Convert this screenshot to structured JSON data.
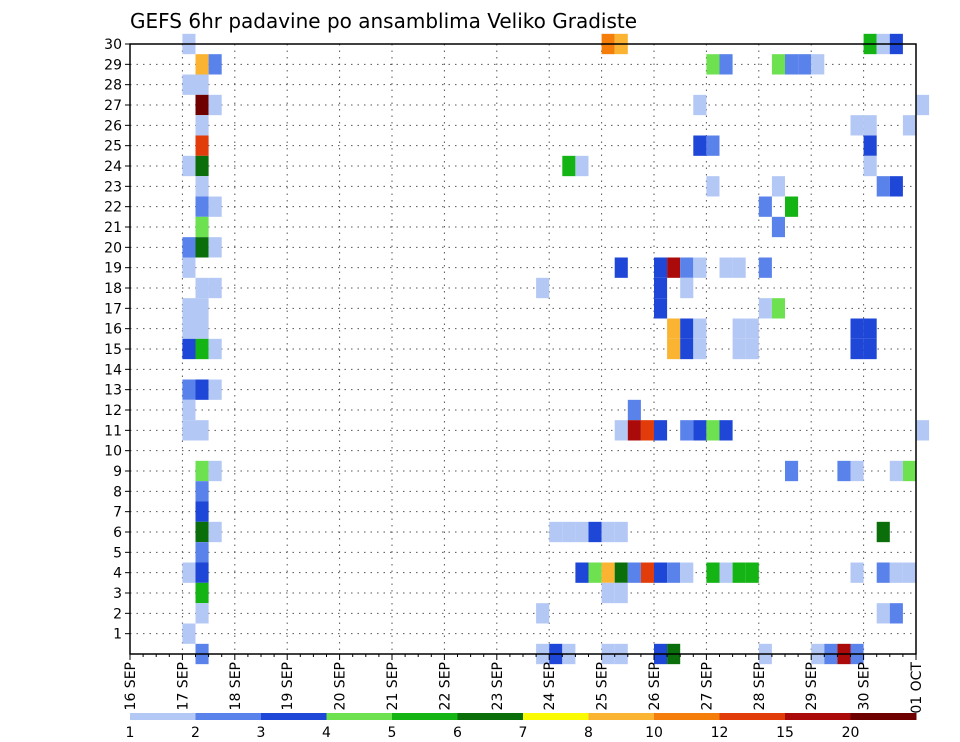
{
  "chart_data": {
    "type": "heatmap",
    "title": "GEFS 6hr padavine po ansamblima Veliko Gradiste",
    "xlabel": "",
    "ylabel": "",
    "x_ticks": [
      "16 SEP",
      "17 SEP",
      "18 SEP",
      "19 SEP",
      "20 SEP",
      "21 SEP",
      "22 SEP",
      "23 SEP",
      "24 SEP",
      "25 SEP",
      "26 SEP",
      "27 SEP",
      "28 SEP",
      "29 SEP",
      "30 SEP",
      "01 OCT"
    ],
    "x_range": [
      "16 SEP 00h",
      "01 OCT 00h"
    ],
    "y_ticks": [
      1,
      2,
      3,
      4,
      5,
      6,
      7,
      8,
      9,
      10,
      11,
      12,
      13,
      14,
      15,
      16,
      17,
      18,
      19,
      20,
      21,
      22,
      23,
      24,
      25,
      26,
      27,
      28,
      29,
      30
    ],
    "y_range": [
      0,
      30
    ],
    "grid": true,
    "legend": {
      "placement": "bottom",
      "levels": [
        1,
        2,
        3,
        4,
        5,
        6,
        7,
        8,
        10,
        12,
        15,
        20
      ],
      "colors": [
        "#b4c8f5",
        "#5a82eb",
        "#1e46d7",
        "#6ee150",
        "#14b414",
        "#0a6e0a",
        "#fafa00",
        "#fab432",
        "#f57d0a",
        "#e13c0a",
        "#aa0a0a",
        "#6e0000"
      ]
    },
    "cells": [
      {
        "member": 30,
        "time": "17 SEP 00h",
        "level": 1
      },
      {
        "member": 30,
        "time": "25 SEP 00h",
        "level": 10
      },
      {
        "member": 30,
        "time": "25 SEP 06h",
        "level": 8
      },
      {
        "member": 30,
        "time": "30 SEP 00h",
        "level": 5
      },
      {
        "member": 30,
        "time": "30 SEP 06h",
        "level": 1
      },
      {
        "member": 30,
        "time": "30 SEP 12h",
        "level": 3
      },
      {
        "member": 29,
        "time": "17 SEP 06h",
        "level": 8
      },
      {
        "member": 29,
        "time": "17 SEP 12h",
        "level": 2
      },
      {
        "member": 29,
        "time": "27 SEP 00h",
        "level": 4
      },
      {
        "member": 29,
        "time": "27 SEP 06h",
        "level": 2
      },
      {
        "member": 29,
        "time": "28 SEP 06h",
        "level": 4
      },
      {
        "member": 29,
        "time": "28 SEP 12h",
        "level": 2
      },
      {
        "member": 29,
        "time": "28 SEP 18h",
        "level": 2
      },
      {
        "member": 29,
        "time": "29 SEP 00h",
        "level": 1
      },
      {
        "member": 28,
        "time": "17 SEP 00h",
        "level": 1
      },
      {
        "member": 28,
        "time": "17 SEP 06h",
        "level": 1
      },
      {
        "member": 27,
        "time": "17 SEP 06h",
        "level": 20
      },
      {
        "member": 27,
        "time": "17 SEP 12h",
        "level": 1
      },
      {
        "member": 27,
        "time": "26 SEP 18h",
        "level": 1
      },
      {
        "member": 27,
        "time": "01 OCT 00h",
        "level": 1
      },
      {
        "member": 26,
        "time": "17 SEP 06h",
        "level": 1
      },
      {
        "member": 26,
        "time": "29 SEP 18h",
        "level": 1
      },
      {
        "member": 26,
        "time": "30 SEP 00h",
        "level": 1
      },
      {
        "member": 26,
        "time": "30 SEP 18h",
        "level": 1
      },
      {
        "member": 25,
        "time": "17 SEP 06h",
        "level": 12
      },
      {
        "member": 25,
        "time": "26 SEP 18h",
        "level": 3
      },
      {
        "member": 25,
        "time": "27 SEP 00h",
        "level": 2
      },
      {
        "member": 25,
        "time": "30 SEP 00h",
        "level": 3
      },
      {
        "member": 24,
        "time": "17 SEP 00h",
        "level": 1
      },
      {
        "member": 24,
        "time": "17 SEP 06h",
        "level": 6
      },
      {
        "member": 24,
        "time": "24 SEP 06h",
        "level": 5
      },
      {
        "member": 24,
        "time": "24 SEP 12h",
        "level": 1
      },
      {
        "member": 24,
        "time": "30 SEP 00h",
        "level": 1
      },
      {
        "member": 23,
        "time": "17 SEP 06h",
        "level": 1
      },
      {
        "member": 23,
        "time": "27 SEP 00h",
        "level": 1
      },
      {
        "member": 23,
        "time": "28 SEP 06h",
        "level": 1
      },
      {
        "member": 23,
        "time": "30 SEP 06h",
        "level": 2
      },
      {
        "member": 23,
        "time": "30 SEP 12h",
        "level": 3
      },
      {
        "member": 22,
        "time": "17 SEP 06h",
        "level": 2
      },
      {
        "member": 22,
        "time": "17 SEP 12h",
        "level": 1
      },
      {
        "member": 22,
        "time": "28 SEP 00h",
        "level": 2
      },
      {
        "member": 22,
        "time": "28 SEP 12h",
        "level": 5
      },
      {
        "member": 21,
        "time": "17 SEP 06h",
        "level": 4
      },
      {
        "member": 21,
        "time": "28 SEP 06h",
        "level": 2
      },
      {
        "member": 20,
        "time": "17 SEP 00h",
        "level": 2
      },
      {
        "member": 20,
        "time": "17 SEP 06h",
        "level": 6
      },
      {
        "member": 20,
        "time": "17 SEP 12h",
        "level": 1
      },
      {
        "member": 19,
        "time": "17 SEP 00h",
        "level": 1
      },
      {
        "member": 19,
        "time": "25 SEP 06h",
        "level": 3
      },
      {
        "member": 19,
        "time": "26 SEP 00h",
        "level": 3
      },
      {
        "member": 19,
        "time": "26 SEP 06h",
        "level": 15
      },
      {
        "member": 19,
        "time": "26 SEP 12h",
        "level": 2
      },
      {
        "member": 19,
        "time": "26 SEP 18h",
        "level": 1
      },
      {
        "member": 19,
        "time": "27 SEP 06h",
        "level": 1
      },
      {
        "member": 19,
        "time": "27 SEP 12h",
        "level": 1
      },
      {
        "member": 19,
        "time": "28 SEP 00h",
        "level": 2
      },
      {
        "member": 18,
        "time": "17 SEP 06h",
        "level": 1
      },
      {
        "member": 18,
        "time": "17 SEP 12h",
        "level": 1
      },
      {
        "member": 18,
        "time": "23 SEP 18h",
        "level": 1
      },
      {
        "member": 18,
        "time": "26 SEP 00h",
        "level": 3
      },
      {
        "member": 18,
        "time": "26 SEP 12h",
        "level": 1
      },
      {
        "member": 17,
        "time": "17 SEP 00h",
        "level": 1
      },
      {
        "member": 17,
        "time": "17 SEP 06h",
        "level": 1
      },
      {
        "member": 17,
        "time": "26 SEP 00h",
        "level": 3
      },
      {
        "member": 17,
        "time": "28 SEP 00h",
        "level": 1
      },
      {
        "member": 17,
        "time": "28 SEP 06h",
        "level": 4
      },
      {
        "member": 16,
        "time": "17 SEP 00h",
        "level": 1
      },
      {
        "member": 16,
        "time": "17 SEP 06h",
        "level": 1
      },
      {
        "member": 16,
        "time": "26 SEP 06h",
        "level": 8
      },
      {
        "member": 16,
        "time": "26 SEP 12h",
        "level": 3
      },
      {
        "member": 16,
        "time": "26 SEP 18h",
        "level": 1
      },
      {
        "member": 16,
        "time": "27 SEP 12h",
        "level": 1
      },
      {
        "member": 16,
        "time": "27 SEP 18h",
        "level": 1
      },
      {
        "member": 16,
        "time": "29 SEP 18h",
        "level": 3
      },
      {
        "member": 16,
        "time": "30 SEP 00h",
        "level": 3
      },
      {
        "member": 15,
        "time": "17 SEP 00h",
        "level": 3
      },
      {
        "member": 15,
        "time": "17 SEP 06h",
        "level": 5
      },
      {
        "member": 15,
        "time": "17 SEP 12h",
        "level": 1
      },
      {
        "member": 15,
        "time": "26 SEP 06h",
        "level": 8
      },
      {
        "member": 15,
        "time": "26 SEP 12h",
        "level": 3
      },
      {
        "member": 15,
        "time": "26 SEP 18h",
        "level": 1
      },
      {
        "member": 15,
        "time": "27 SEP 12h",
        "level": 1
      },
      {
        "member": 15,
        "time": "27 SEP 18h",
        "level": 1
      },
      {
        "member": 15,
        "time": "29 SEP 18h",
        "level": 3
      },
      {
        "member": 15,
        "time": "30 SEP 00h",
        "level": 3
      },
      {
        "member": 13,
        "time": "17 SEP 00h",
        "level": 2
      },
      {
        "member": 13,
        "time": "17 SEP 06h",
        "level": 3
      },
      {
        "member": 13,
        "time": "17 SEP 12h",
        "level": 1
      },
      {
        "member": 12,
        "time": "17 SEP 00h",
        "level": 1
      },
      {
        "member": 12,
        "time": "25 SEP 12h",
        "level": 2
      },
      {
        "member": 11,
        "time": "17 SEP 00h",
        "level": 1
      },
      {
        "member": 11,
        "time": "17 SEP 06h",
        "level": 1
      },
      {
        "member": 11,
        "time": "25 SEP 06h",
        "level": 1
      },
      {
        "member": 11,
        "time": "25 SEP 12h",
        "level": 15
      },
      {
        "member": 11,
        "time": "25 SEP 18h",
        "level": 12
      },
      {
        "member": 11,
        "time": "26 SEP 00h",
        "level": 3
      },
      {
        "member": 11,
        "time": "26 SEP 12h",
        "level": 2
      },
      {
        "member": 11,
        "time": "26 SEP 18h",
        "level": 3
      },
      {
        "member": 11,
        "time": "27 SEP 00h",
        "level": 4
      },
      {
        "member": 11,
        "time": "27 SEP 06h",
        "level": 3
      },
      {
        "member": 11,
        "time": "01 OCT 00h",
        "level": 1
      },
      {
        "member": 9,
        "time": "17 SEP 06h",
        "level": 4
      },
      {
        "member": 9,
        "time": "17 SEP 12h",
        "level": 1
      },
      {
        "member": 9,
        "time": "28 SEP 12h",
        "level": 2
      },
      {
        "member": 9,
        "time": "29 SEP 12h",
        "level": 2
      },
      {
        "member": 9,
        "time": "29 SEP 18h",
        "level": 1
      },
      {
        "member": 9,
        "time": "30 SEP 12h",
        "level": 1
      },
      {
        "member": 9,
        "time": "30 SEP 18h",
        "level": 4
      },
      {
        "member": 8,
        "time": "17 SEP 06h",
        "level": 2
      },
      {
        "member": 7,
        "time": "17 SEP 06h",
        "level": 3
      },
      {
        "member": 6,
        "time": "17 SEP 06h",
        "level": 6
      },
      {
        "member": 6,
        "time": "17 SEP 12h",
        "level": 1
      },
      {
        "member": 6,
        "time": "24 SEP 00h",
        "level": 1
      },
      {
        "member": 6,
        "time": "24 SEP 06h",
        "level": 1
      },
      {
        "member": 6,
        "time": "24 SEP 12h",
        "level": 1
      },
      {
        "member": 6,
        "time": "24 SEP 18h",
        "level": 3
      },
      {
        "member": 6,
        "time": "25 SEP 00h",
        "level": 1
      },
      {
        "member": 6,
        "time": "25 SEP 06h",
        "level": 1
      },
      {
        "member": 6,
        "time": "30 SEP 06h",
        "level": 6
      },
      {
        "member": 5,
        "time": "17 SEP 06h",
        "level": 2
      },
      {
        "member": 4,
        "time": "17 SEP 00h",
        "level": 1
      },
      {
        "member": 4,
        "time": "17 SEP 06h",
        "level": 3
      },
      {
        "member": 4,
        "time": "24 SEP 12h",
        "level": 3
      },
      {
        "member": 4,
        "time": "24 SEP 18h",
        "level": 4
      },
      {
        "member": 4,
        "time": "25 SEP 00h",
        "level": 8
      },
      {
        "member": 4,
        "time": "25 SEP 06h",
        "level": 6
      },
      {
        "member": 4,
        "time": "25 SEP 12h",
        "level": 2
      },
      {
        "member": 4,
        "time": "25 SEP 18h",
        "level": 12
      },
      {
        "member": 4,
        "time": "26 SEP 00h",
        "level": 3
      },
      {
        "member": 4,
        "time": "26 SEP 06h",
        "level": 2
      },
      {
        "member": 4,
        "time": "26 SEP 12h",
        "level": 1
      },
      {
        "member": 4,
        "time": "27 SEP 00h",
        "level": 5
      },
      {
        "member": 4,
        "time": "27 SEP 06h",
        "level": 1
      },
      {
        "member": 4,
        "time": "27 SEP 12h",
        "level": 5
      },
      {
        "member": 4,
        "time": "27 SEP 18h",
        "level": 5
      },
      {
        "member": 4,
        "time": "29 SEP 18h",
        "level": 1
      },
      {
        "member": 4,
        "time": "30 SEP 06h",
        "level": 2
      },
      {
        "member": 4,
        "time": "30 SEP 12h",
        "level": 1
      },
      {
        "member": 4,
        "time": "30 SEP 18h",
        "level": 1
      },
      {
        "member": 3,
        "time": "17 SEP 06h",
        "level": 5
      },
      {
        "member": 3,
        "time": "25 SEP 00h",
        "level": 1
      },
      {
        "member": 3,
        "time": "25 SEP 06h",
        "level": 1
      },
      {
        "member": 2,
        "time": "17 SEP 06h",
        "level": 1
      },
      {
        "member": 2,
        "time": "23 SEP 18h",
        "level": 1
      },
      {
        "member": 2,
        "time": "30 SEP 06h",
        "level": 1
      },
      {
        "member": 2,
        "time": "30 SEP 12h",
        "level": 2
      },
      {
        "member": 1,
        "time": "17 SEP 00h",
        "level": 1
      },
      {
        "member": 0,
        "time": "17 SEP 06h",
        "level": 2
      },
      {
        "member": 0,
        "time": "23 SEP 18h",
        "level": 1
      },
      {
        "member": 0,
        "time": "24 SEP 00h",
        "level": 3
      },
      {
        "member": 0,
        "time": "24 SEP 06h",
        "level": 1
      },
      {
        "member": 0,
        "time": "25 SEP 00h",
        "level": 1
      },
      {
        "member": 0,
        "time": "25 SEP 06h",
        "level": 1
      },
      {
        "member": 0,
        "time": "26 SEP 00h",
        "level": 3
      },
      {
        "member": 0,
        "time": "26 SEP 06h",
        "level": 6
      },
      {
        "member": 0,
        "time": "28 SEP 00h",
        "level": 1
      },
      {
        "member": 0,
        "time": "29 SEP 00h",
        "level": 1
      },
      {
        "member": 0,
        "time": "29 SEP 06h",
        "level": 2
      },
      {
        "member": 0,
        "time": "29 SEP 12h",
        "level": 15
      },
      {
        "member": 0,
        "time": "29 SEP 18h",
        "level": 2
      }
    ]
  }
}
